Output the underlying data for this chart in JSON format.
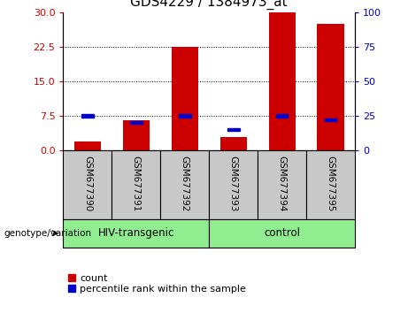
{
  "title": "GDS4229 / 1384973_at",
  "samples": [
    "GSM677390",
    "GSM677391",
    "GSM677392",
    "GSM677393",
    "GSM677394",
    "GSM677395"
  ],
  "count_values": [
    2.0,
    6.5,
    22.5,
    2.8,
    30.0,
    27.5
  ],
  "percentile_values": [
    25.0,
    20.0,
    25.0,
    15.0,
    25.0,
    22.0
  ],
  "groups": [
    {
      "label": "HIV-transgenic",
      "start": 0,
      "end": 3,
      "color": "#90EE90"
    },
    {
      "label": "control",
      "start": 3,
      "end": 6,
      "color": "#90EE90"
    }
  ],
  "genotype_label": "genotype/variation",
  "ylim_left": [
    0,
    30
  ],
  "ylim_right": [
    0,
    100
  ],
  "yticks_left": [
    0,
    7.5,
    15,
    22.5,
    30
  ],
  "yticks_right": [
    0,
    25,
    50,
    75,
    100
  ],
  "left_color": "#CC0000",
  "right_color": "#0000CC",
  "bar_color": "#CC0000",
  "percentile_color": "#0000CC",
  "bg_color": "#C8C8C8",
  "legend_items": [
    "count",
    "percentile rank within the sample"
  ],
  "bar_width": 0.55,
  "grid_lines": [
    7.5,
    15,
    22.5
  ],
  "fig_width": 4.61,
  "fig_height": 3.54,
  "dpi": 100
}
